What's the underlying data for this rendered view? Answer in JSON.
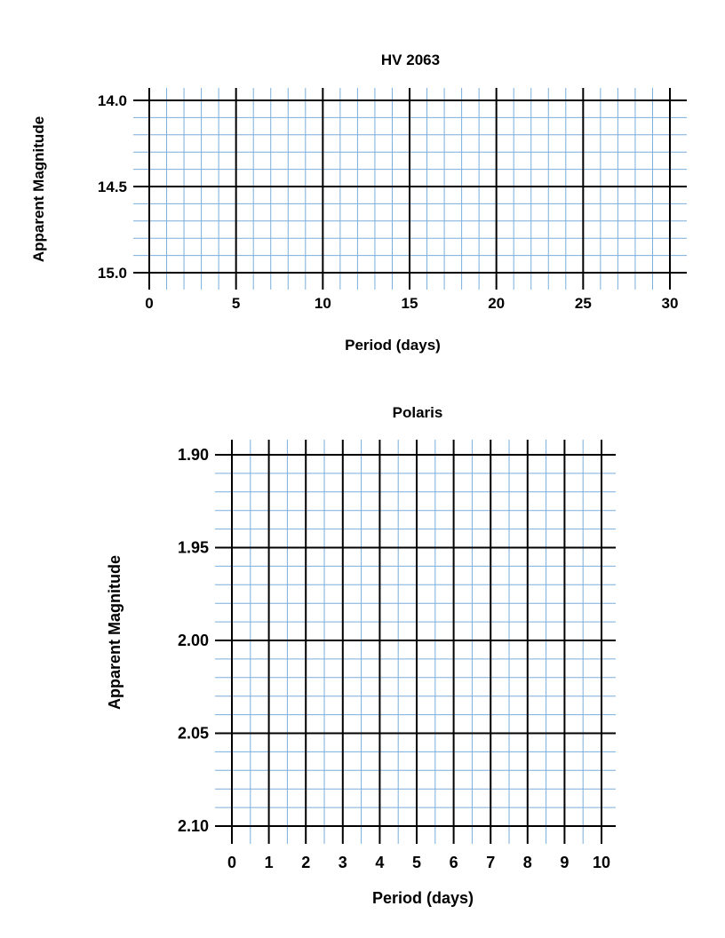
{
  "chart_data": [
    {
      "type": "scatter",
      "title": "HV 2063",
      "xlabel": "Period (days)",
      "ylabel": "Apparent Magnitude",
      "xlim": [
        0,
        30
      ],
      "ylim": [
        14.0,
        15.0
      ],
      "y_inverted": true,
      "x_ticks": [
        "0",
        "5",
        "10",
        "15",
        "20",
        "25",
        "30"
      ],
      "y_ticks": [
        "14.0",
        "14.5",
        "15.0"
      ],
      "x_minor_step": 1,
      "y_minor_step": 0.1,
      "grid": true,
      "series": []
    },
    {
      "type": "scatter",
      "title": "Polaris",
      "xlabel": "Period (days)",
      "ylabel": "Apparent Magnitude",
      "xlim": [
        0,
        10
      ],
      "ylim": [
        1.9,
        2.1
      ],
      "y_inverted": true,
      "x_ticks": [
        "0",
        "1",
        "2",
        "3",
        "4",
        "5",
        "6",
        "7",
        "8",
        "9",
        "10"
      ],
      "y_ticks": [
        "1.90",
        "1.95",
        "2.00",
        "2.05",
        "2.10"
      ],
      "x_minor_step": 0.5,
      "y_minor_step": 0.01,
      "grid": true,
      "series": []
    }
  ],
  "colors": {
    "minor_grid": "#7aaedc",
    "major_grid": "#000000"
  }
}
